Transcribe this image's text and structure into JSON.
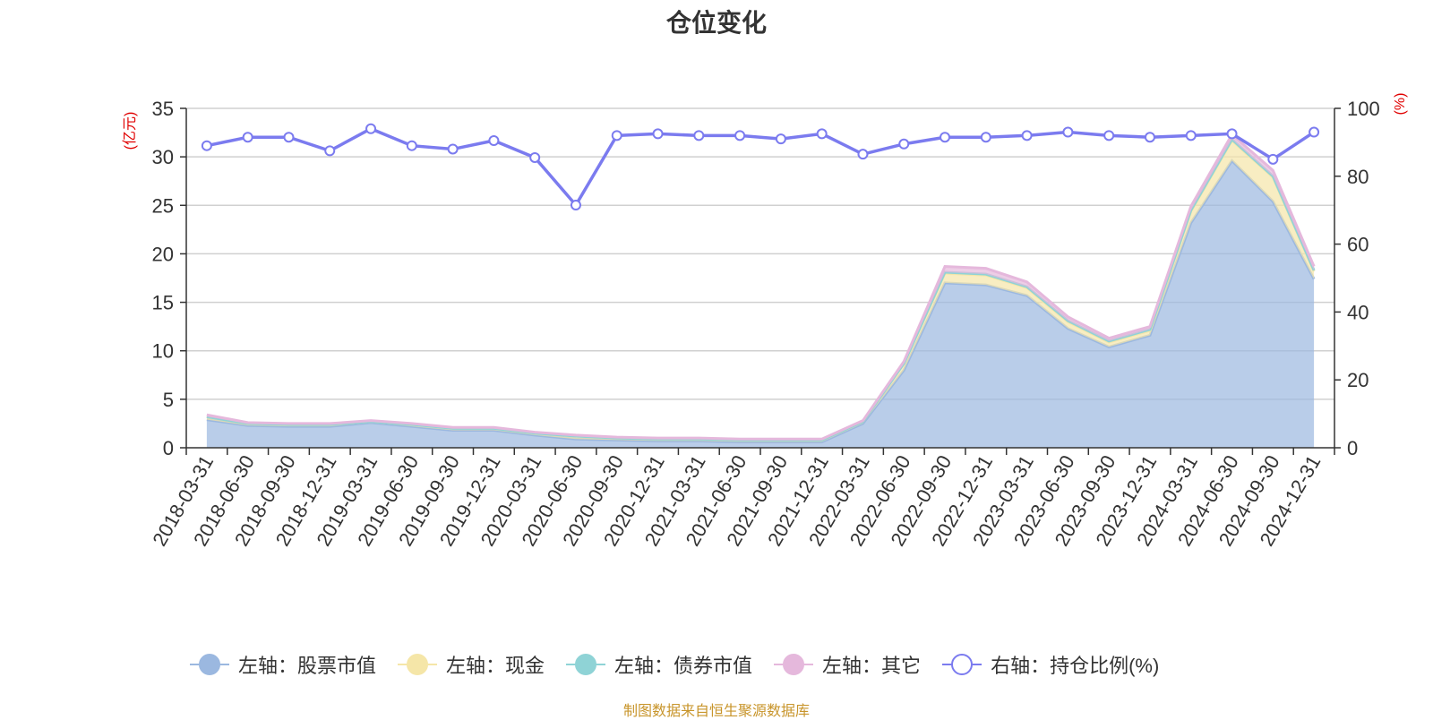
{
  "title": "仓位变化",
  "source_note": "制图数据来自恒生聚源数据库",
  "chart_data": {
    "type": "area",
    "categories": [
      "2018-03-31",
      "2018-06-30",
      "2018-09-30",
      "2018-12-31",
      "2019-03-31",
      "2019-06-30",
      "2019-09-30",
      "2019-12-31",
      "2020-03-31",
      "2020-06-30",
      "2020-09-30",
      "2020-12-31",
      "2021-03-31",
      "2021-06-30",
      "2021-09-30",
      "2021-12-31",
      "2022-03-31",
      "2022-06-30",
      "2022-09-30",
      "2022-12-31",
      "2023-03-31",
      "2023-06-30",
      "2023-09-30",
      "2023-12-31",
      "2024-03-31",
      "2024-06-30",
      "2024-09-30",
      "2024-12-31"
    ],
    "left_axis": {
      "label": "(亿元)",
      "min": 0,
      "max": 35,
      "ticks": [
        0,
        5,
        10,
        15,
        20,
        25,
        30,
        35
      ]
    },
    "right_axis": {
      "label": "(%)",
      "min": 0,
      "max": 100,
      "ticks": [
        0,
        20,
        40,
        60,
        80,
        100
      ]
    },
    "series": [
      {
        "name": "左轴：股票市值",
        "axis": "left",
        "stacked": true,
        "color": "#9bb8e0",
        "values": [
          2.9,
          2.3,
          2.2,
          2.2,
          2.6,
          2.2,
          1.8,
          1.8,
          1.3,
          0.9,
          0.8,
          0.7,
          0.7,
          0.6,
          0.6,
          0.6,
          2.5,
          8.0,
          17.0,
          16.8,
          15.7,
          12.3,
          10.4,
          11.6,
          23.2,
          29.6,
          25.4,
          17.4
        ]
      },
      {
        "name": "左轴：现金",
        "axis": "left",
        "stacked": true,
        "color": "#f5e6a8",
        "values": [
          0.3,
          0.2,
          0.2,
          0.2,
          0.1,
          0.2,
          0.2,
          0.2,
          0.2,
          0.3,
          0.2,
          0.2,
          0.2,
          0.2,
          0.2,
          0.2,
          0.2,
          0.7,
          1.0,
          1.0,
          0.8,
          0.7,
          0.5,
          0.5,
          1.2,
          2.1,
          2.5,
          0.8
        ]
      },
      {
        "name": "左轴：债券市值",
        "axis": "left",
        "stacked": true,
        "color": "#8fd3d6",
        "values": [
          0,
          0,
          0,
          0,
          0,
          0,
          0,
          0,
          0,
          0,
          0,
          0,
          0,
          0,
          0,
          0,
          0,
          0,
          0.1,
          0.1,
          0.1,
          0.1,
          0.1,
          0.1,
          0.1,
          0.1,
          0.1,
          0.1
        ]
      },
      {
        "name": "左轴：其它",
        "axis": "left",
        "stacked": true,
        "color": "#e5b8dc",
        "values": [
          0.2,
          0.1,
          0.1,
          0.1,
          0.1,
          0.1,
          0.1,
          0.1,
          0.1,
          0.1,
          0.1,
          0.1,
          0.1,
          0.1,
          0.1,
          0.1,
          0.1,
          0.2,
          0.6,
          0.6,
          0.5,
          0.4,
          0.3,
          0.3,
          0.4,
          0.5,
          0.6,
          0.4
        ]
      },
      {
        "name": "右轴：持仓比例(%)",
        "axis": "right",
        "stacked": false,
        "color": "#7b7bef",
        "values": [
          89,
          91.5,
          91.5,
          87.5,
          94,
          89,
          88,
          90.5,
          85.5,
          71.5,
          92,
          92.5,
          92,
          92,
          91,
          92.5,
          86.5,
          89.5,
          91.5,
          91.5,
          92,
          93,
          92,
          91.5,
          92,
          92.5,
          85,
          93
        ]
      }
    ],
    "grid": true,
    "legend_position": "bottom"
  },
  "legend": [
    {
      "label": "左轴：股票市值",
      "color": "#9bb8e0",
      "hollow": false
    },
    {
      "label": "左轴：现金",
      "color": "#f5e6a8",
      "hollow": false
    },
    {
      "label": "左轴：债券市值",
      "color": "#8fd3d6",
      "hollow": false
    },
    {
      "label": "左轴：其它",
      "color": "#e5b8dc",
      "hollow": false
    },
    {
      "label": "右轴：持仓比例(%)",
      "color": "#7b7bef",
      "hollow": true
    }
  ]
}
